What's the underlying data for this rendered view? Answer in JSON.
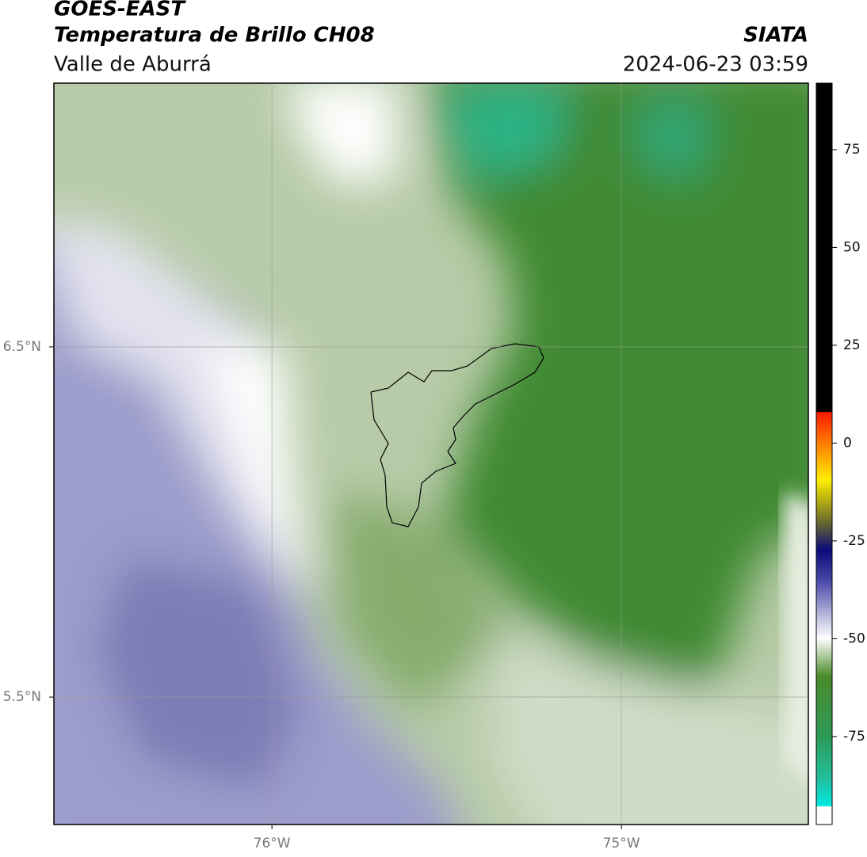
{
  "header": {
    "title": "GOES-EAST",
    "subtitle": "Temperatura de Brillo CH08",
    "region": "Valle de Aburrá",
    "source": "SIATA",
    "datetime": "2024-06-23 03:59"
  },
  "map": {
    "lonlim": [
      -76.624,
      -74.465
    ],
    "latlim": [
      5.136,
      7.253
    ],
    "lat_ticks": [
      {
        "value": 6.5,
        "label": "6.5°N"
      },
      {
        "value": 5.5,
        "label": "5.5°N"
      }
    ],
    "lon_ticks": [
      {
        "value": -76,
        "label": "76°W"
      },
      {
        "value": -75,
        "label": "75°W"
      }
    ]
  },
  "colorbar": {
    "range": [
      -97.5,
      92
    ],
    "ticks": [
      75,
      50,
      25,
      0,
      -25,
      -50,
      -75
    ]
  }
}
